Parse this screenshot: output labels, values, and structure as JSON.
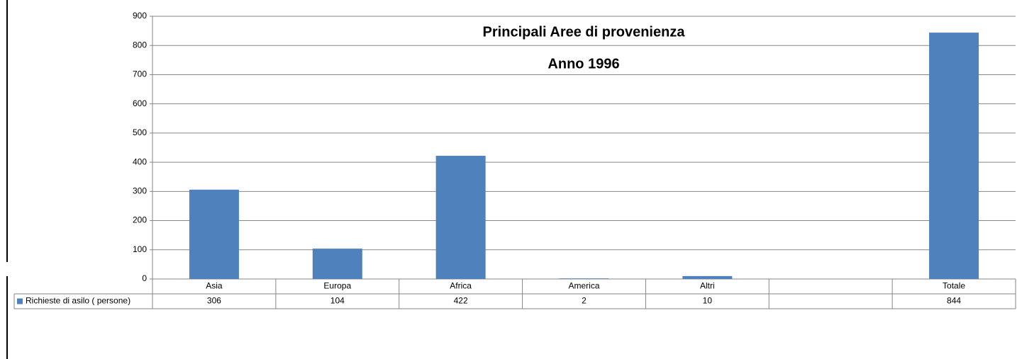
{
  "chart_data": {
    "type": "bar",
    "title": "Principali Aree di provenienza",
    "subtitle": "Anno 1996",
    "categories": [
      "Asia",
      "Europa",
      "Africa",
      "America",
      "Altri",
      null,
      "Totale"
    ],
    "series": [
      {
        "name": "Richieste di asilo ( persone)",
        "color": "#4f81bd",
        "values": [
          306,
          104,
          422,
          2,
          10,
          null,
          844
        ]
      }
    ],
    "ylim": [
      0,
      900
    ],
    "yticks": [
      0,
      100,
      200,
      300,
      400,
      500,
      600,
      700,
      800,
      900
    ],
    "grid": true,
    "data_table": true
  }
}
